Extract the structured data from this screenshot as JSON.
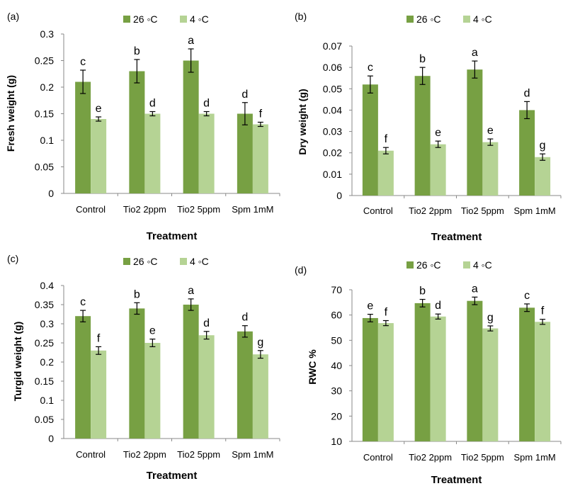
{
  "colors": {
    "warm": "#77a043",
    "cold": "#b5d394"
  },
  "chart_data": [
    {
      "panel": "(a)",
      "type": "bar",
      "categories": [
        "Control",
        "Tio2  2ppm",
        "Tio2  5ppm",
        "Spm  1mM"
      ],
      "series": [
        {
          "name": "26 ◦C",
          "values": [
            0.21,
            0.23,
            0.25,
            0.15
          ],
          "errors": [
            0.022,
            0.022,
            0.022,
            0.021
          ],
          "letters": [
            "c",
            "b",
            "a",
            "d"
          ]
        },
        {
          "name": "4 ◦C",
          "values": [
            0.14,
            0.15,
            0.15,
            0.13
          ],
          "errors": [
            0.004,
            0.004,
            0.004,
            0.004
          ],
          "letters": [
            "e",
            "d",
            "d",
            "f"
          ]
        }
      ],
      "xlabel": "Treatment",
      "ylabel": "Fresh weight (g)",
      "ylim": [
        0,
        0.3
      ],
      "yticks": [
        "0",
        "0.05",
        "0.1",
        "0.15",
        "0.2",
        "0.25",
        "0.3"
      ],
      "legend": "top-center",
      "grid": false
    },
    {
      "panel": "(b)",
      "type": "bar",
      "categories": [
        "Control",
        "Tio2 2ppm",
        "Tio2 5ppm",
        "Spm 1mM"
      ],
      "series": [
        {
          "name": "26 ◦C",
          "values": [
            0.052,
            0.056,
            0.059,
            0.04
          ],
          "errors": [
            0.004,
            0.004,
            0.004,
            0.004
          ],
          "letters": [
            "c",
            "b",
            "a",
            "d"
          ]
        },
        {
          "name": "4 ◦C",
          "values": [
            0.021,
            0.024,
            0.025,
            0.018
          ],
          "errors": [
            0.0015,
            0.0015,
            0.0015,
            0.0015
          ],
          "letters": [
            "f",
            "e",
            "e",
            "g"
          ]
        }
      ],
      "xlabel": "Treatment",
      "ylabel": "Dry weight (g)",
      "ylim": [
        0,
        0.07
      ],
      "yticks": [
        "0",
        "0.01",
        "0.02",
        "0.03",
        "0.04",
        "0.05",
        "0.06",
        "0.07"
      ],
      "legend": "top-center",
      "grid": false
    },
    {
      "panel": "(c)",
      "type": "bar",
      "categories": [
        "Control",
        "Tio2 2ppm",
        "Tio2 5ppm",
        "Spm 1mM"
      ],
      "series": [
        {
          "name": "26 ◦C",
          "values": [
            0.32,
            0.34,
            0.35,
            0.28
          ],
          "errors": [
            0.015,
            0.015,
            0.015,
            0.015
          ],
          "letters": [
            "c",
            "b",
            "a",
            "d"
          ]
        },
        {
          "name": "4 ◦C",
          "values": [
            0.23,
            0.25,
            0.27,
            0.22
          ],
          "errors": [
            0.01,
            0.01,
            0.01,
            0.01
          ],
          "letters": [
            "f",
            "e",
            "d",
            "g"
          ]
        }
      ],
      "xlabel": "Treatment",
      "ylabel": "Turgid weight (g)",
      "ylim": [
        0,
        0.4
      ],
      "yticks": [
        "0",
        "0.05",
        "0.1",
        "0.15",
        "0.2",
        "0.25",
        "0.3",
        "0.35",
        "0.4"
      ],
      "legend": "top-center",
      "grid": false
    },
    {
      "panel": "(d)",
      "type": "bar",
      "categories": [
        "Control",
        "Tio2 2ppm",
        "Tio2 5ppm",
        "Spm 1mM"
      ],
      "series": [
        {
          "name": "26 ◦C",
          "values": [
            58.8,
            64.7,
            65.6,
            62.9
          ],
          "errors": [
            1.5,
            1.5,
            1.5,
            1.5
          ],
          "letters": [
            "e",
            "b",
            "a",
            "c"
          ]
        },
        {
          "name": "4 ◦C",
          "values": [
            56.8,
            59.4,
            54.7,
            57.3
          ],
          "errors": [
            1.0,
            1.0,
            1.0,
            1.0
          ],
          "letters": [
            "f",
            "d",
            "g",
            "f"
          ]
        }
      ],
      "xlabel": "Treatment",
      "ylabel": "RWC %",
      "ylim": [
        10,
        70
      ],
      "yticks": [
        "10",
        "20",
        "30",
        "40",
        "50",
        "60",
        "70"
      ],
      "legend": "top-center",
      "grid": false
    }
  ]
}
